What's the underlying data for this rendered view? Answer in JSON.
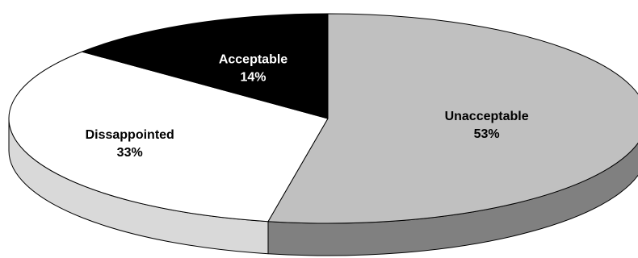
{
  "chart_data": {
    "type": "pie",
    "three_d": true,
    "categories": [
      "Unacceptable",
      "Dissappointed",
      "Acceptable"
    ],
    "values": [
      53,
      33,
      14
    ],
    "value_labels": [
      "53%",
      "33%",
      "14%"
    ],
    "colors": [
      "#c0c0c0",
      "#ffffff",
      "#000000"
    ],
    "side_colors": [
      "#808080",
      "#d9d9d9",
      "#404040"
    ],
    "label_colors": [
      "#000000",
      "#000000",
      "#ffffff"
    ],
    "start": "12 o'clock",
    "direction": "clockwise"
  }
}
